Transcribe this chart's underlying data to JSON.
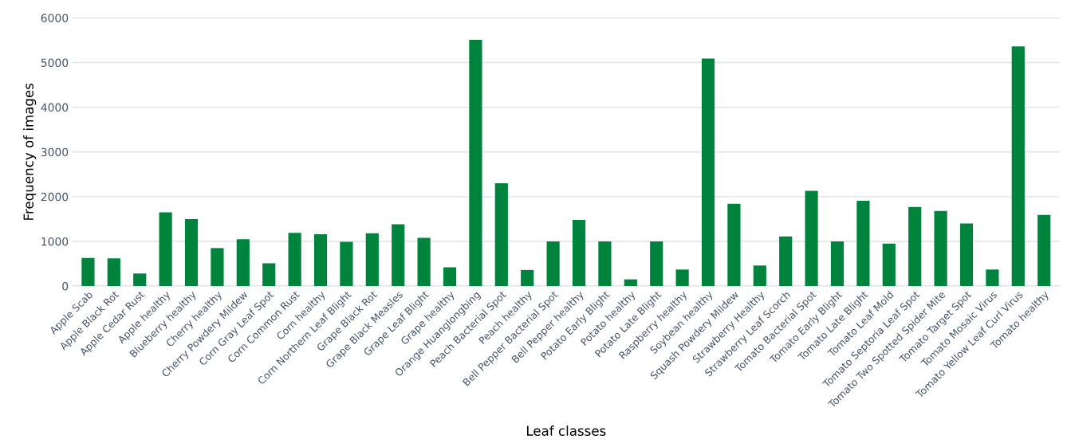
{
  "chart_data": {
    "type": "bar",
    "xlabel": "Leaf classes",
    "ylabel": "Frequency of images",
    "categories": [
      "Apple Scab",
      "Apple Black Rot",
      "Apple Cedar Rust",
      "Apple healthy",
      "Blueberry healthy",
      "Cherry healthy",
      "Cherry Powdery Mildew",
      "Corn Gray Leaf Spot",
      "Corn Common Rust",
      "Corn healthy",
      "Corn Northern Leaf Blight",
      "Grape Black Rot",
      "Grape Black Measles",
      "Grape Leaf Blight",
      "Grape healthy",
      "Orange Huanglongbing",
      "Peach Bacterial Spot",
      "Peach healthy",
      "Bell Pepper Bacterial Spot",
      "Bell Pepper healthy",
      "Potato Early Blight",
      "Potato healthy",
      "Potato Late Blight",
      "Raspberry healthy",
      "Soybean healthy",
      "Squash Powdery Mildew",
      "Strawberry Healthy",
      "Strawberry Leaf Scorch",
      "Tomato Bacterial Spot",
      "Tomato Early Blight",
      "Tomato Late Blight",
      "Tomato Leaf Mold",
      "Tomato Septoria Leaf Spot",
      "Tomato Two Spotted Spider Mite",
      "Tomato Target Spot",
      "Tomato Mosaic Virus",
      "Tomato Yellow Leaf Curl Virus",
      "Tomato healthy"
    ],
    "values": [
      630,
      620,
      280,
      1650,
      1500,
      850,
      1050,
      510,
      1190,
      1160,
      990,
      1180,
      1380,
      1080,
      420,
      5510,
      2300,
      360,
      1000,
      1480,
      1000,
      150,
      1000,
      370,
      5090,
      1840,
      460,
      1110,
      2130,
      1000,
      1910,
      950,
      1770,
      1680,
      1400,
      370,
      5360,
      1590
    ],
    "color": "#00843d",
    "ylim": [
      0,
      6000
    ],
    "yticks": [
      0,
      1000,
      2000,
      3000,
      4000,
      5000,
      6000
    ],
    "grid": "y"
  }
}
